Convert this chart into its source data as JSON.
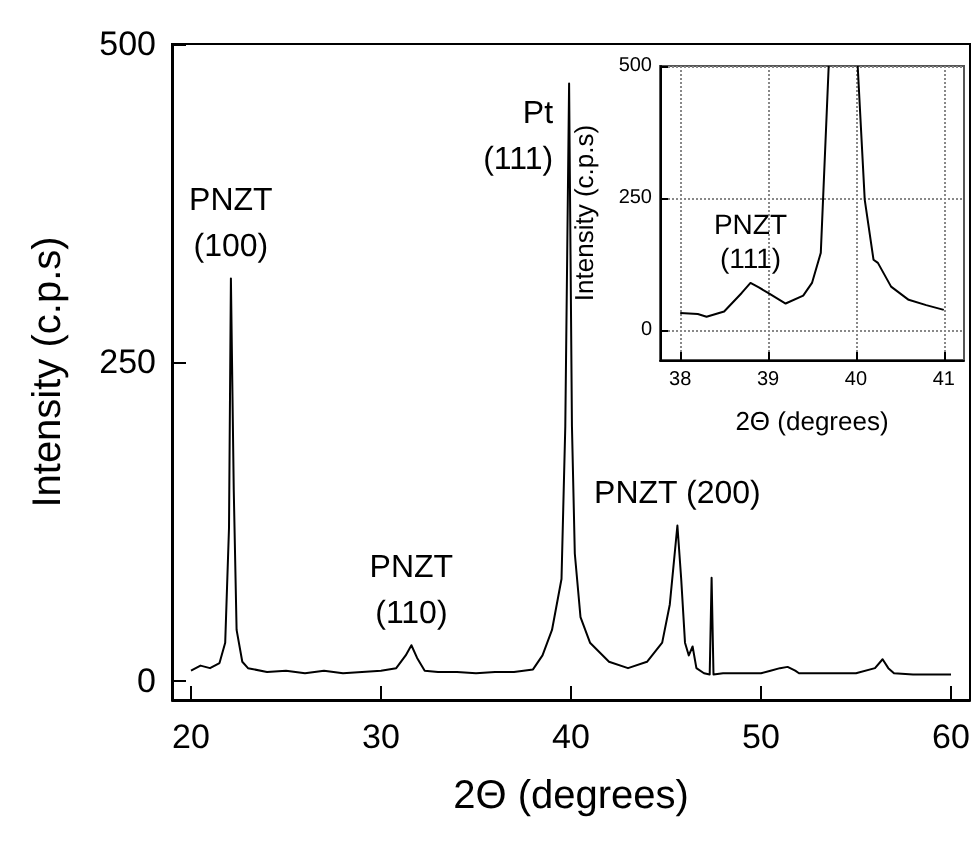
{
  "chart_data": [
    {
      "type": "line",
      "xlabel": "2Θ (degrees)",
      "ylabel": "Intensity (c.p.s)",
      "color": "#000000",
      "grid": false,
      "marker": "none",
      "line_style": "solid",
      "xlim": [
        19,
        61
      ],
      "ylim": [
        -15,
        500
      ],
      "xticks": [
        20,
        30,
        40,
        50,
        60
      ],
      "yticks": [
        0,
        250,
        500
      ],
      "x": [
        20,
        20.5,
        21,
        21.5,
        21.8,
        22,
        22.1,
        22.25,
        22.4,
        22.7,
        23,
        24,
        25,
        26,
        27,
        28,
        29,
        30,
        30.8,
        31.3,
        31.6,
        31.9,
        32.3,
        33,
        34,
        35,
        36,
        37,
        38,
        38.5,
        39,
        39.5,
        39.7,
        39.9,
        40.05,
        40.2,
        40.5,
        41,
        42,
        43,
        44,
        44.8,
        45.2,
        45.6,
        45.8,
        46,
        46.2,
        46.4,
        46.6,
        47,
        47.3,
        47.4,
        47.5,
        48,
        49,
        50,
        50.5,
        51,
        51.4,
        51.8,
        52,
        53,
        54,
        55,
        56,
        56.4,
        56.7,
        57,
        58,
        59,
        60
      ],
      "values": [
        8,
        12,
        10,
        14,
        30,
        120,
        316,
        150,
        40,
        15,
        10,
        7,
        8,
        6,
        8,
        6,
        7,
        8,
        10,
        20,
        28,
        18,
        8,
        7,
        7,
        6,
        7,
        7,
        9,
        20,
        40,
        80,
        200,
        469,
        200,
        100,
        50,
        30,
        15,
        10,
        15,
        30,
        60,
        122,
        80,
        30,
        20,
        27,
        10,
        6,
        5,
        81,
        5,
        6,
        6,
        6,
        8,
        10,
        11,
        8,
        6,
        6,
        6,
        6,
        10,
        17,
        10,
        6,
        5,
        5,
        5
      ],
      "annotations": [
        {
          "text": "PNZT\n(100)",
          "x": 22.1,
          "y": 316
        },
        {
          "text": "Pt\n(111)",
          "x": 39.9,
          "y": 469
        },
        {
          "text": "PNZT\n(110)",
          "x": 31.6,
          "y": 28
        },
        {
          "text": "PNZT (200)",
          "x": 45.6,
          "y": 122
        }
      ]
    },
    {
      "type": "line",
      "xlabel": "2Θ (degrees)",
      "ylabel": "Intensity (c.p.s)",
      "color": "#000000",
      "grid": true,
      "marker": "none",
      "line_style": "solid",
      "xlim": [
        37.77,
        41.23
      ],
      "ylim": [
        -57,
        500
      ],
      "xticks": [
        38,
        39,
        40,
        41
      ],
      "yticks": [
        0,
        250,
        500
      ],
      "x": [
        38,
        38.2,
        38.3,
        38.5,
        38.7,
        38.8,
        38.9,
        39,
        39.2,
        39.4,
        39.5,
        39.6,
        39.69,
        39.8,
        40.02,
        40.1,
        40.2,
        40.25,
        40.4,
        40.6,
        40.8,
        41
      ],
      "values": [
        32,
        30,
        25,
        35,
        70,
        89,
        80,
        70,
        50,
        65,
        89,
        146,
        500,
        null,
        500,
        247,
        133,
        127,
        82,
        57,
        47,
        38
      ],
      "annotations": [
        {
          "text": "PNZT\n(111)",
          "x": 38.8,
          "y": 89
        }
      ]
    }
  ]
}
